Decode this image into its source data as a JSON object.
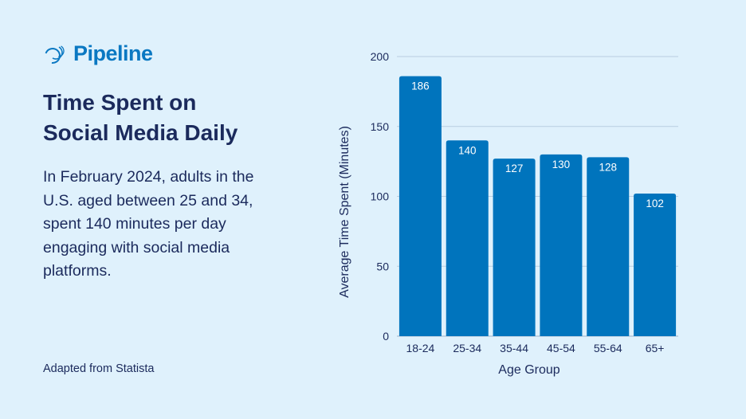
{
  "brand": {
    "name": "Pipeline",
    "icon": "pipeline-logo-icon",
    "color": "#0a78c2"
  },
  "title_line1": "Time Spent on",
  "title_line2": "Social Media Daily",
  "description": "In February 2024, adults in the U.S. aged between 25 and 34, spent 140 minutes per day engaging with social media platforms.",
  "source": "Adapted from Statista",
  "colors": {
    "background": "#dff1fc",
    "bar": "#0074bd",
    "text": "#1b2a5c"
  },
  "chart_data": {
    "type": "bar",
    "categories": [
      "18-24",
      "25-34",
      "35-44",
      "45-54",
      "55-64",
      "65+"
    ],
    "values": [
      186,
      140,
      127,
      130,
      128,
      102
    ],
    "data_labels": true,
    "xlabel": "Age Group",
    "ylabel": "Average Time Spent (Minutes)",
    "ylim": [
      0,
      200
    ],
    "yticks": [
      0,
      50,
      100,
      150,
      200
    ],
    "grid": "horizontal"
  }
}
